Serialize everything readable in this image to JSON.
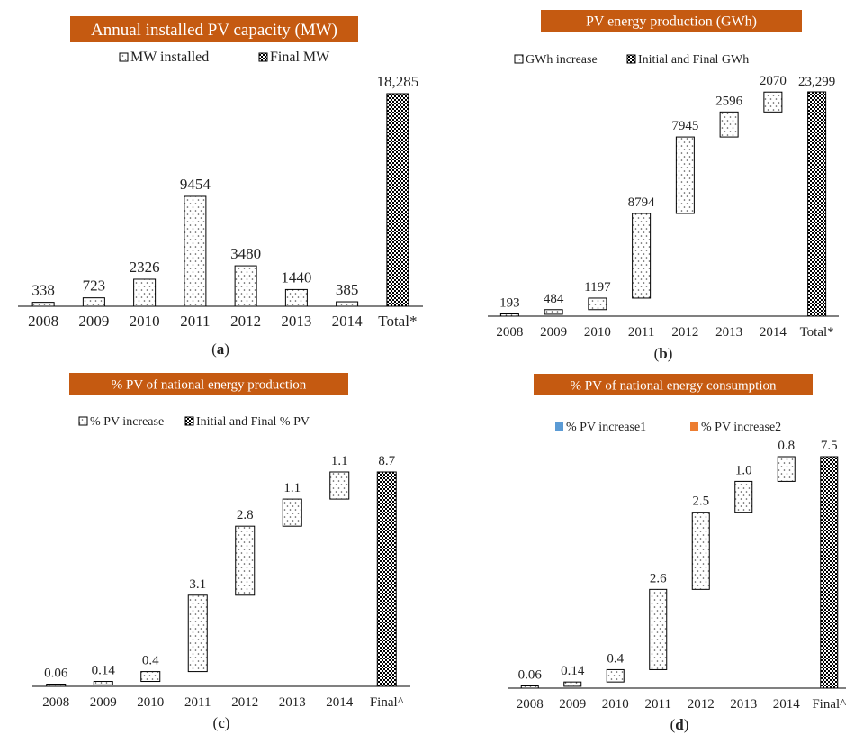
{
  "colors": {
    "title_bg": "#C55A11",
    "title_text": "#FFFFFF",
    "bar_stroke": "#000000",
    "dot": "#555555",
    "legend_blue": "#5B9BD5",
    "legend_orange": "#ED7D31"
  },
  "chart_data": [
    {
      "type": "waterfall",
      "panel": "(a)",
      "panel_letter": "a",
      "title": "Annual installed PV capacity (MW)",
      "legend": [
        "MW installed",
        "Final MW"
      ],
      "categories": [
        "2008",
        "2009",
        "2010",
        "2011",
        "2012",
        "2013",
        "2014",
        "Total*"
      ],
      "increments": [
        338,
        723,
        2326,
        9454,
        3480,
        1440,
        385
      ],
      "increment_labels": [
        "338",
        "723",
        "2326",
        "9454",
        "3480",
        "1440",
        "385"
      ],
      "cumulative": false,
      "final_value": 18285,
      "final_label": "18,285",
      "ylim": [
        0,
        18500
      ]
    },
    {
      "type": "waterfall",
      "panel": "(b)",
      "panel_letter": "b",
      "title": "PV energy production (GWh)",
      "legend": [
        "GWh increase",
        "Initial and Final GWh"
      ],
      "categories": [
        "2008",
        "2009",
        "2010",
        "2011",
        "2012",
        "2013",
        "2014",
        "Total*"
      ],
      "increments": [
        193,
        484,
        1197,
        8794,
        7945,
        2596,
        2070
      ],
      "increment_labels": [
        "193",
        "484",
        "1197",
        "8794",
        "7945",
        "2596",
        "2070"
      ],
      "cumulative": true,
      "final_value": 23299,
      "final_label": "23,299",
      "ylim": [
        0,
        23500
      ]
    },
    {
      "type": "waterfall",
      "panel": "(c)",
      "panel_letter": "c",
      "title": "% PV of national energy production",
      "legend": [
        "% PV increase",
        "Initial and Final % PV"
      ],
      "categories": [
        "2008",
        "2009",
        "2010",
        "2011",
        "2012",
        "2013",
        "2014",
        "Final^"
      ],
      "increments": [
        0.06,
        0.14,
        0.4,
        3.1,
        2.8,
        1.1,
        1.1
      ],
      "increment_labels": [
        "0.06",
        "0.14",
        "0.4",
        "3.1",
        "2.8",
        "1.1",
        "1.1"
      ],
      "cumulative": true,
      "final_value": 8.7,
      "final_label": "8.7",
      "ylim": [
        0,
        8.8
      ]
    },
    {
      "type": "waterfall",
      "panel": "(d)",
      "panel_letter": "d",
      "title": "% PV of national energy consumption",
      "legend": [
        "% PV increase1",
        "% PV increase2"
      ],
      "categories": [
        "2008",
        "2009",
        "2010",
        "2011",
        "2012",
        "2013",
        "2014",
        "Final^"
      ],
      "increments": [
        0.06,
        0.14,
        0.4,
        2.6,
        2.5,
        1.0,
        0.8
      ],
      "increment_labels": [
        "0.06",
        "0.14",
        "0.4",
        "2.6",
        "2.5",
        "1.0",
        "0.8"
      ],
      "cumulative": true,
      "final_value": 7.5,
      "final_label": "7.5",
      "ylim": [
        0,
        7.6
      ]
    }
  ]
}
